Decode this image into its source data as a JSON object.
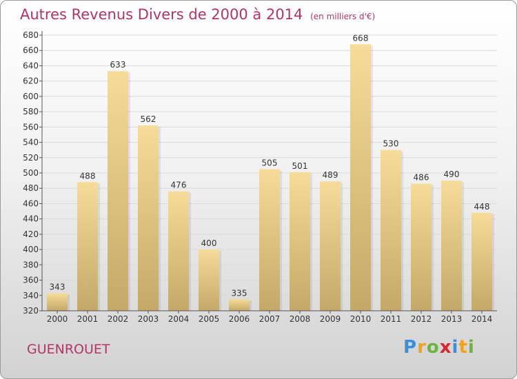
{
  "chart_data": {
    "type": "bar",
    "title": "Autres Revenus Divers de 2000 à 2014",
    "subtitle": "(en milliers d'€)",
    "categories": [
      "2000",
      "2001",
      "2002",
      "2003",
      "2004",
      "2005",
      "2006",
      "2007",
      "2008",
      "2009",
      "2010",
      "2011",
      "2012",
      "2013",
      "2014"
    ],
    "values": [
      343,
      488,
      633,
      562,
      476,
      400,
      335,
      505,
      501,
      489,
      668,
      530,
      486,
      490,
      448
    ],
    "ylim": [
      320,
      680
    ],
    "yticks": [
      320,
      340,
      360,
      380,
      400,
      420,
      440,
      460,
      480,
      500,
      520,
      540,
      560,
      580,
      600,
      620,
      640,
      660,
      680
    ],
    "grid": true,
    "colors": {
      "bar_top": "#f6dc98",
      "bar_bottom": "#c4a867",
      "title": "#b5336a"
    }
  },
  "commune": "GUENROUET",
  "logo": {
    "text": "Proxiti",
    "letters": [
      {
        "ch": "P",
        "color": "#3b8fd8"
      },
      {
        "ch": "r",
        "color": "#f2a21a"
      },
      {
        "ch": "o",
        "color": "#6cb33f"
      },
      {
        "ch": "x",
        "color": "#d9262e"
      },
      {
        "ch": "i",
        "color": "#3b8fd8"
      },
      {
        "ch": "t",
        "color": "#f2a21a"
      },
      {
        "ch": "i",
        "color": "#6cb33f"
      }
    ]
  }
}
